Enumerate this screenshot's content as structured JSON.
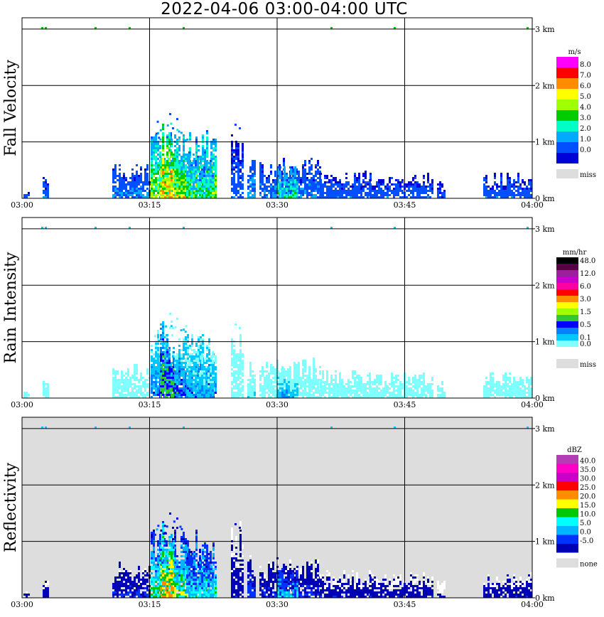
{
  "page": {
    "title": "2022-04-06   03:00-04:00 UTC"
  },
  "chart_data": [
    {
      "type": "heatmap",
      "title": "",
      "ylabel": "Fall Velocity",
      "xlabel": "",
      "x_ticks": [
        "03:00",
        "03:15",
        "03:30",
        "03:45",
        "04:00"
      ],
      "y_ticks": [
        "0 km",
        "1 km",
        "2 km",
        "3 km"
      ],
      "xlim_minutes": [
        0,
        60
      ],
      "ylim_km": [
        0,
        3.2
      ],
      "grid": true,
      "legend_placement": "right",
      "colorbar": {
        "unit": "m/s",
        "levels": [
          "8.0",
          "7.0",
          "6.0",
          "5.0",
          "4.0",
          "3.0",
          "2.0",
          "1.0",
          "0.0"
        ],
        "colors": [
          "#ff00ff",
          "#ff0000",
          "#ff8c00",
          "#ffff00",
          "#a0ff00",
          "#00cc00",
          "#00ffc8",
          "#00aaff",
          "#0050ff",
          "#0000d8"
        ],
        "miss_label": "miss",
        "miss_color": "#dddddd"
      },
      "background": "#ffffff"
    },
    {
      "type": "heatmap",
      "title": "",
      "ylabel": "Rain Intensity",
      "xlabel": "",
      "x_ticks": [
        "03:00",
        "03:15",
        "03:30",
        "03:45",
        "04:00"
      ],
      "y_ticks": [
        "0 km",
        "1 km",
        "2 km",
        "3 km"
      ],
      "xlim_minutes": [
        0,
        60
      ],
      "ylim_km": [
        0,
        3.2
      ],
      "grid": true,
      "legend_placement": "right",
      "colorbar": {
        "unit": "mm/hr",
        "levels": [
          "48.0",
          "",
          "12.0",
          "",
          "6.0",
          "",
          "3.0",
          "",
          "1.5",
          "",
          "0.5",
          "",
          "0.1",
          "0.0"
        ],
        "colors": [
          "#000000",
          "#5a0046",
          "#9e1e9e",
          "#c800c8",
          "#ff00a0",
          "#ff0000",
          "#ff8c00",
          "#ffff00",
          "#a0ff00",
          "#32c832",
          "#0000ff",
          "#0082ff",
          "#00c8ff",
          "#80ffff",
          "#ffffff"
        ],
        "miss_label": "miss",
        "miss_color": "#dddddd"
      },
      "background": "#ffffff"
    },
    {
      "type": "heatmap",
      "title": "",
      "ylabel": "Reflectivity",
      "xlabel": "",
      "x_ticks": [
        "03:00",
        "03:15",
        "03:30",
        "03:45",
        "04:00"
      ],
      "y_ticks": [
        "0 km",
        "1 km",
        "2 km",
        "3 km"
      ],
      "xlim_minutes": [
        0,
        60
      ],
      "ylim_km": [
        0,
        3.2
      ],
      "grid": true,
      "legend_placement": "right",
      "colorbar": {
        "unit": "dBZ",
        "levels": [
          "40.0",
          "35.0",
          "30.0",
          "25.0",
          "20.0",
          "15.0",
          "10.0",
          "5.0",
          "0.0",
          "-5.0"
        ],
        "colors": [
          "#b43cb4",
          "#ff00c8",
          "#c800c8",
          "#ff0000",
          "#ff8c00",
          "#ffff00",
          "#00c800",
          "#00ffff",
          "#00b4ff",
          "#0032ff",
          "#0000b4"
        ],
        "miss_label": "none",
        "miss_color": "#dddddd"
      },
      "background": "#dddddd"
    }
  ]
}
